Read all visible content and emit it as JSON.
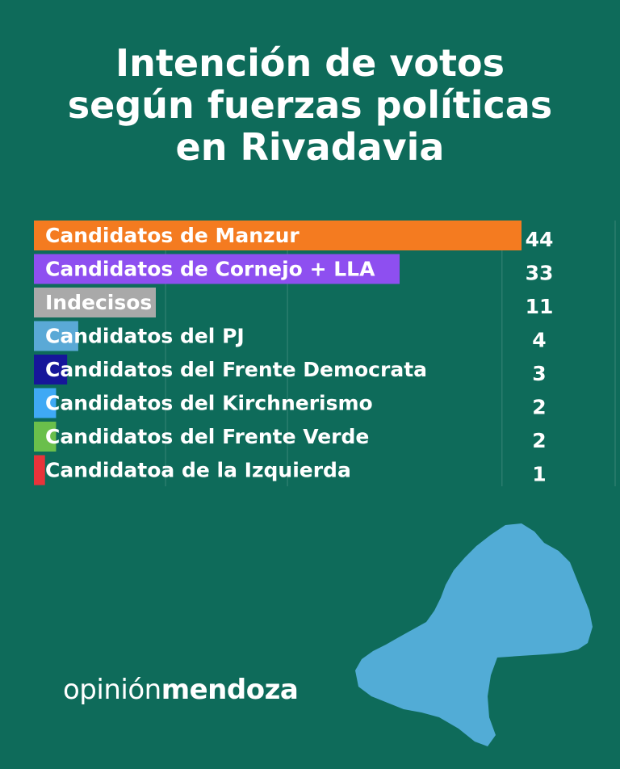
{
  "title_lines": [
    "Intención de votos",
    "según fuerzas políticas",
    "en Rivadavia"
  ],
  "chart_data": {
    "type": "bar",
    "orientation": "horizontal",
    "title": "Intención de votos según fuerzas políticas en Rivadavia",
    "categories": [
      "Candidatos de Manzur",
      "Candidatos de Cornejo + LLA",
      "Indecisos",
      "Candidatos del PJ",
      "Candidatos del Frente Democrata",
      "Candidatos del Kirchnerismo",
      "Candidatos del Frente Verde",
      "Candidatoa de la Izquierda"
    ],
    "values": [
      44,
      33,
      11,
      4,
      3,
      2,
      2,
      1
    ],
    "colors": [
      "#f47b20",
      "#8e4ff0",
      "#a9a9a9",
      "#5aa9d6",
      "#16169a",
      "#3fa9f5",
      "#6abf4b",
      "#e8333a"
    ],
    "xlim": [
      0,
      44
    ],
    "grid": true,
    "data_labels": true
  },
  "brand": {
    "part1": "opinión",
    "part2": "mendoza"
  },
  "map": {
    "color": "#52acd6"
  }
}
